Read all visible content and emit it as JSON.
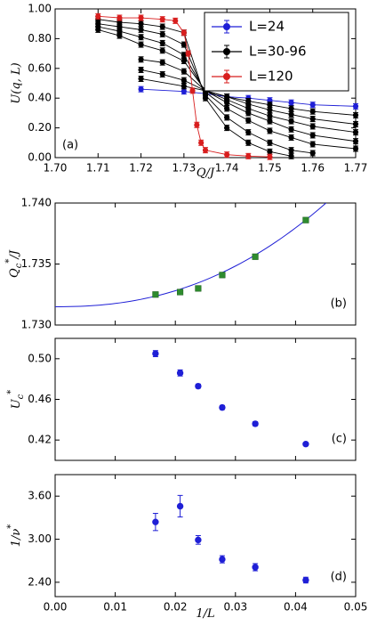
{
  "chart_data": [
    {
      "type": "line",
      "panel_label": "(a)",
      "xlabel": "Q/J",
      "ylabel": "U(q, L)",
      "xlim": [
        1.7,
        1.77
      ],
      "ylim": [
        0.0,
        1.0
      ],
      "xticks": [
        1.7,
        1.71,
        1.72,
        1.73,
        1.74,
        1.75,
        1.76,
        1.77
      ],
      "xtick_labels": [
        "1.70",
        "1.71",
        "1.72",
        "1.73",
        "1.74",
        "1.75",
        "1.76",
        "1.77"
      ],
      "yticks": [
        0.0,
        0.2,
        0.4,
        0.6,
        0.8,
        1.0
      ],
      "ytick_labels": [
        "0.00",
        "0.20",
        "0.40",
        "0.60",
        "0.80",
        "1.00"
      ],
      "legend_position": "top-right",
      "legend": [
        {
          "label": "L=24",
          "color": "#1f1fd6"
        },
        {
          "label": "L=30-96",
          "color": "#000000"
        },
        {
          "label": "L=120",
          "color": "#d81e1e"
        }
      ],
      "series": [
        {
          "name": "L=24",
          "color": "#1f1fd6",
          "x": [
            1.72,
            1.73,
            1.735,
            1.74,
            1.745,
            1.75,
            1.755,
            1.76,
            1.77
          ],
          "y": [
            0.46,
            0.445,
            0.43,
            0.41,
            0.4,
            0.385,
            0.37,
            0.355,
            0.345
          ]
        },
        {
          "color": "#000000",
          "x": [
            1.72,
            1.73,
            1.735,
            1.74,
            1.745,
            1.75,
            1.755,
            1.76,
            1.77
          ],
          "y": [
            0.53,
            0.48,
            0.45,
            0.41,
            0.38,
            0.355,
            0.33,
            0.31,
            0.285
          ]
        },
        {
          "color": "#000000",
          "x": [
            1.72,
            1.725,
            1.73,
            1.735,
            1.74,
            1.745,
            1.75,
            1.755,
            1.76,
            1.77
          ],
          "y": [
            0.59,
            0.56,
            0.52,
            0.45,
            0.41,
            0.36,
            0.32,
            0.29,
            0.26,
            0.225
          ]
        },
        {
          "color": "#000000",
          "x": [
            1.72,
            1.725,
            1.73,
            1.735,
            1.74,
            1.745,
            1.75,
            1.755,
            1.76,
            1.77
          ],
          "y": [
            0.66,
            0.64,
            0.58,
            0.45,
            0.39,
            0.33,
            0.28,
            0.245,
            0.21,
            0.17
          ]
        },
        {
          "color": "#000000",
          "x": [
            1.71,
            1.715,
            1.72,
            1.725,
            1.73,
            1.735,
            1.74,
            1.745,
            1.75,
            1.755,
            1.76,
            1.77
          ],
          "y": [
            0.86,
            0.82,
            0.76,
            0.72,
            0.65,
            0.45,
            0.37,
            0.3,
            0.245,
            0.19,
            0.15,
            0.11
          ]
        },
        {
          "color": "#000000",
          "x": [
            1.71,
            1.715,
            1.72,
            1.725,
            1.73,
            1.735,
            1.74,
            1.745,
            1.75,
            1.755,
            1.76,
            1.77
          ],
          "y": [
            0.88,
            0.85,
            0.81,
            0.77,
            0.69,
            0.44,
            0.33,
            0.25,
            0.18,
            0.135,
            0.09,
            0.06
          ]
        },
        {
          "color": "#000000",
          "x": [
            1.71,
            1.715,
            1.72,
            1.725,
            1.73,
            1.735,
            1.74,
            1.745,
            1.75,
            1.755,
            1.76
          ],
          "y": [
            0.9,
            0.88,
            0.86,
            0.83,
            0.76,
            0.42,
            0.27,
            0.17,
            0.1,
            0.05,
            0.03
          ]
        },
        {
          "color": "#000000",
          "x": [
            1.71,
            1.715,
            1.72,
            1.725,
            1.73,
            1.735,
            1.74,
            1.745,
            1.75,
            1.755
          ],
          "y": [
            0.93,
            0.91,
            0.9,
            0.88,
            0.84,
            0.4,
            0.2,
            0.1,
            0.04,
            0.01
          ]
        },
        {
          "name": "L=120",
          "color": "#d81e1e",
          "x": [
            1.71,
            1.715,
            1.72,
            1.725,
            1.728,
            1.73,
            1.731,
            1.732,
            1.733,
            1.734,
            1.735,
            1.74,
            1.745,
            1.75
          ],
          "y": [
            0.95,
            0.94,
            0.94,
            0.93,
            0.92,
            0.84,
            0.7,
            0.45,
            0.22,
            0.1,
            0.05,
            0.02,
            0.01,
            0.005
          ]
        }
      ]
    },
    {
      "type": "scatter",
      "panel_label": "(b)",
      "ylabel": "Q_c*/J",
      "xlim": [
        0.0,
        0.05
      ],
      "ylim": [
        1.73,
        1.74
      ],
      "yticks": [
        1.73,
        1.735,
        1.74
      ],
      "ytick_labels": [
        "1.730",
        "1.735",
        "1.740"
      ],
      "points_color": "#2e8b2e",
      "fit_color": "#1f1fd6",
      "x": [
        0.0167,
        0.0208,
        0.0238,
        0.0278,
        0.0333,
        0.0417
      ],
      "y": [
        1.7325,
        1.7327,
        1.733,
        1.7341,
        1.7356,
        1.7386
      ],
      "fit_curve": {
        "x": [
          0.0,
          0.005,
          0.01,
          0.015,
          0.02,
          0.025,
          0.03,
          0.035,
          0.04,
          0.045,
          0.05
        ],
        "y": [
          1.7315,
          1.7315,
          1.7317,
          1.7321,
          1.7327,
          1.7337,
          1.7349,
          1.7364,
          1.7381,
          1.7401,
          1.7423
        ]
      }
    },
    {
      "type": "scatter",
      "panel_label": "(c)",
      "ylabel": "U_c*",
      "xlim": [
        0.0,
        0.05
      ],
      "ylim": [
        0.4,
        0.52
      ],
      "yticks": [
        0.42,
        0.46,
        0.5
      ],
      "ytick_labels": [
        "0.42",
        "0.46",
        "0.50"
      ],
      "color": "#1f1fd6",
      "x": [
        0.0167,
        0.0208,
        0.0238,
        0.0278,
        0.0333,
        0.0417
      ],
      "y": [
        0.505,
        0.486,
        0.473,
        0.452,
        0.436,
        0.416
      ],
      "err": [
        0.003,
        0.003,
        0.002,
        0.002,
        0.002,
        0.0015
      ]
    },
    {
      "type": "scatter",
      "panel_label": "(d)",
      "ylabel": "1/ν*",
      "xlabel": "1/L",
      "xlim": [
        0.0,
        0.05
      ],
      "ylim": [
        2.2,
        3.9
      ],
      "xticks": [
        0.0,
        0.01,
        0.02,
        0.03,
        0.04,
        0.05
      ],
      "xtick_labels": [
        "0.00",
        "0.01",
        "0.02",
        "0.03",
        "0.04",
        "0.05"
      ],
      "yticks": [
        2.4,
        3.0,
        3.6
      ],
      "ytick_labels": [
        "2.40",
        "3.00",
        "3.60"
      ],
      "color": "#1f1fd6",
      "x": [
        0.0167,
        0.0208,
        0.0238,
        0.0278,
        0.0333,
        0.0417
      ],
      "y": [
        3.24,
        3.46,
        2.99,
        2.72,
        2.61,
        2.43
      ],
      "err": [
        0.12,
        0.15,
        0.06,
        0.05,
        0.05,
        0.04
      ]
    }
  ]
}
